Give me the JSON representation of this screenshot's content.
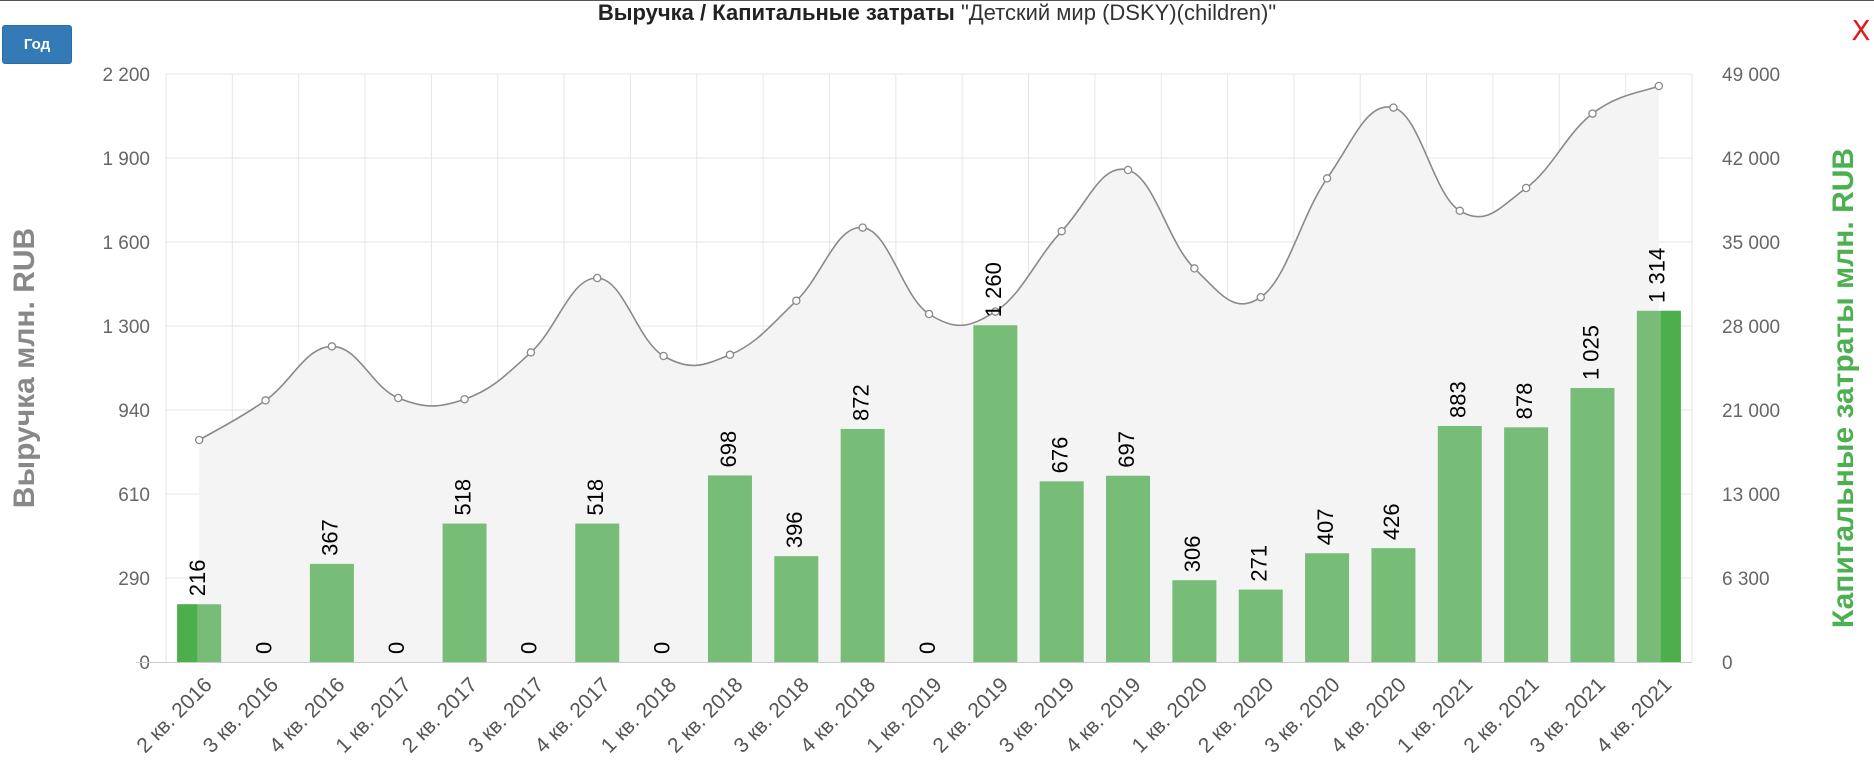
{
  "title": {
    "bold": "Выручка / Капитальные затраты",
    "company": "\"Детский мир (DSKY)(children)\""
  },
  "controls": {
    "period_label": "Год",
    "close_label": "X"
  },
  "colors": {
    "bar": "#77bc77",
    "bar_highlight": "#4caf4c",
    "line": "#8a8a8a",
    "area": "#f4f4f4",
    "left_axis_title": "#888888",
    "right_axis_title": "#4caf50"
  },
  "chart_data": {
    "type": "bar",
    "categories": [
      "2 кв. 2016",
      "3 кв. 2016",
      "4 кв. 2016",
      "1 кв. 2017",
      "2 кв. 2017",
      "3 кв. 2017",
      "4 кв. 2017",
      "1 кв. 2018",
      "2 кв. 2018",
      "3 кв. 2018",
      "4 кв. 2018",
      "1 кв. 2019",
      "2 кв. 2019",
      "3 кв. 2019",
      "4 кв. 2019",
      "1 кв. 2020",
      "2 кв. 2020",
      "3 кв. 2020",
      "4 кв. 2020",
      "1 кв. 2021",
      "2 кв. 2021",
      "3 кв. 2021",
      "4 кв. 2021"
    ],
    "ylabel": "Выручка млн. RUB",
    "y2label": "Капитальные затраты млн. RUB",
    "ylim": [
      0,
      2200
    ],
    "y2lim": [
      0,
      49000
    ],
    "y_ticks": [
      "0",
      "290",
      "610",
      "940",
      "1 300",
      "1 600",
      "1 900",
      "2 200"
    ],
    "y2_ticks": [
      "0",
      "6 300",
      "13 000",
      "21 000",
      "28 000",
      "35 000",
      "42 000",
      "49 000"
    ],
    "grid": true,
    "series": [
      {
        "type": "bar",
        "axis": "left",
        "values": [
          216,
          0,
          367,
          0,
          518,
          0,
          518,
          0,
          698,
          396,
          872,
          0,
          1260,
          676,
          697,
          306,
          271,
          407,
          426,
          883,
          878,
          1025,
          1314
        ],
        "labels": [
          "216",
          "0",
          "367",
          "0",
          "518",
          "0",
          "518",
          "0",
          "698",
          "396",
          "872",
          "0",
          "1 260",
          "676",
          "697",
          "306",
          "271",
          "407",
          "426",
          "883",
          "878",
          "1 025",
          "1 314"
        ]
      },
      {
        "type": "area",
        "axis": "right",
        "values": [
          18500,
          21800,
          26300,
          22000,
          21900,
          25800,
          32000,
          25500,
          25600,
          30100,
          36200,
          29000,
          29200,
          35900,
          41000,
          32800,
          30400,
          40300,
          46200,
          37600,
          39500,
          45700,
          48000
        ]
      }
    ]
  }
}
